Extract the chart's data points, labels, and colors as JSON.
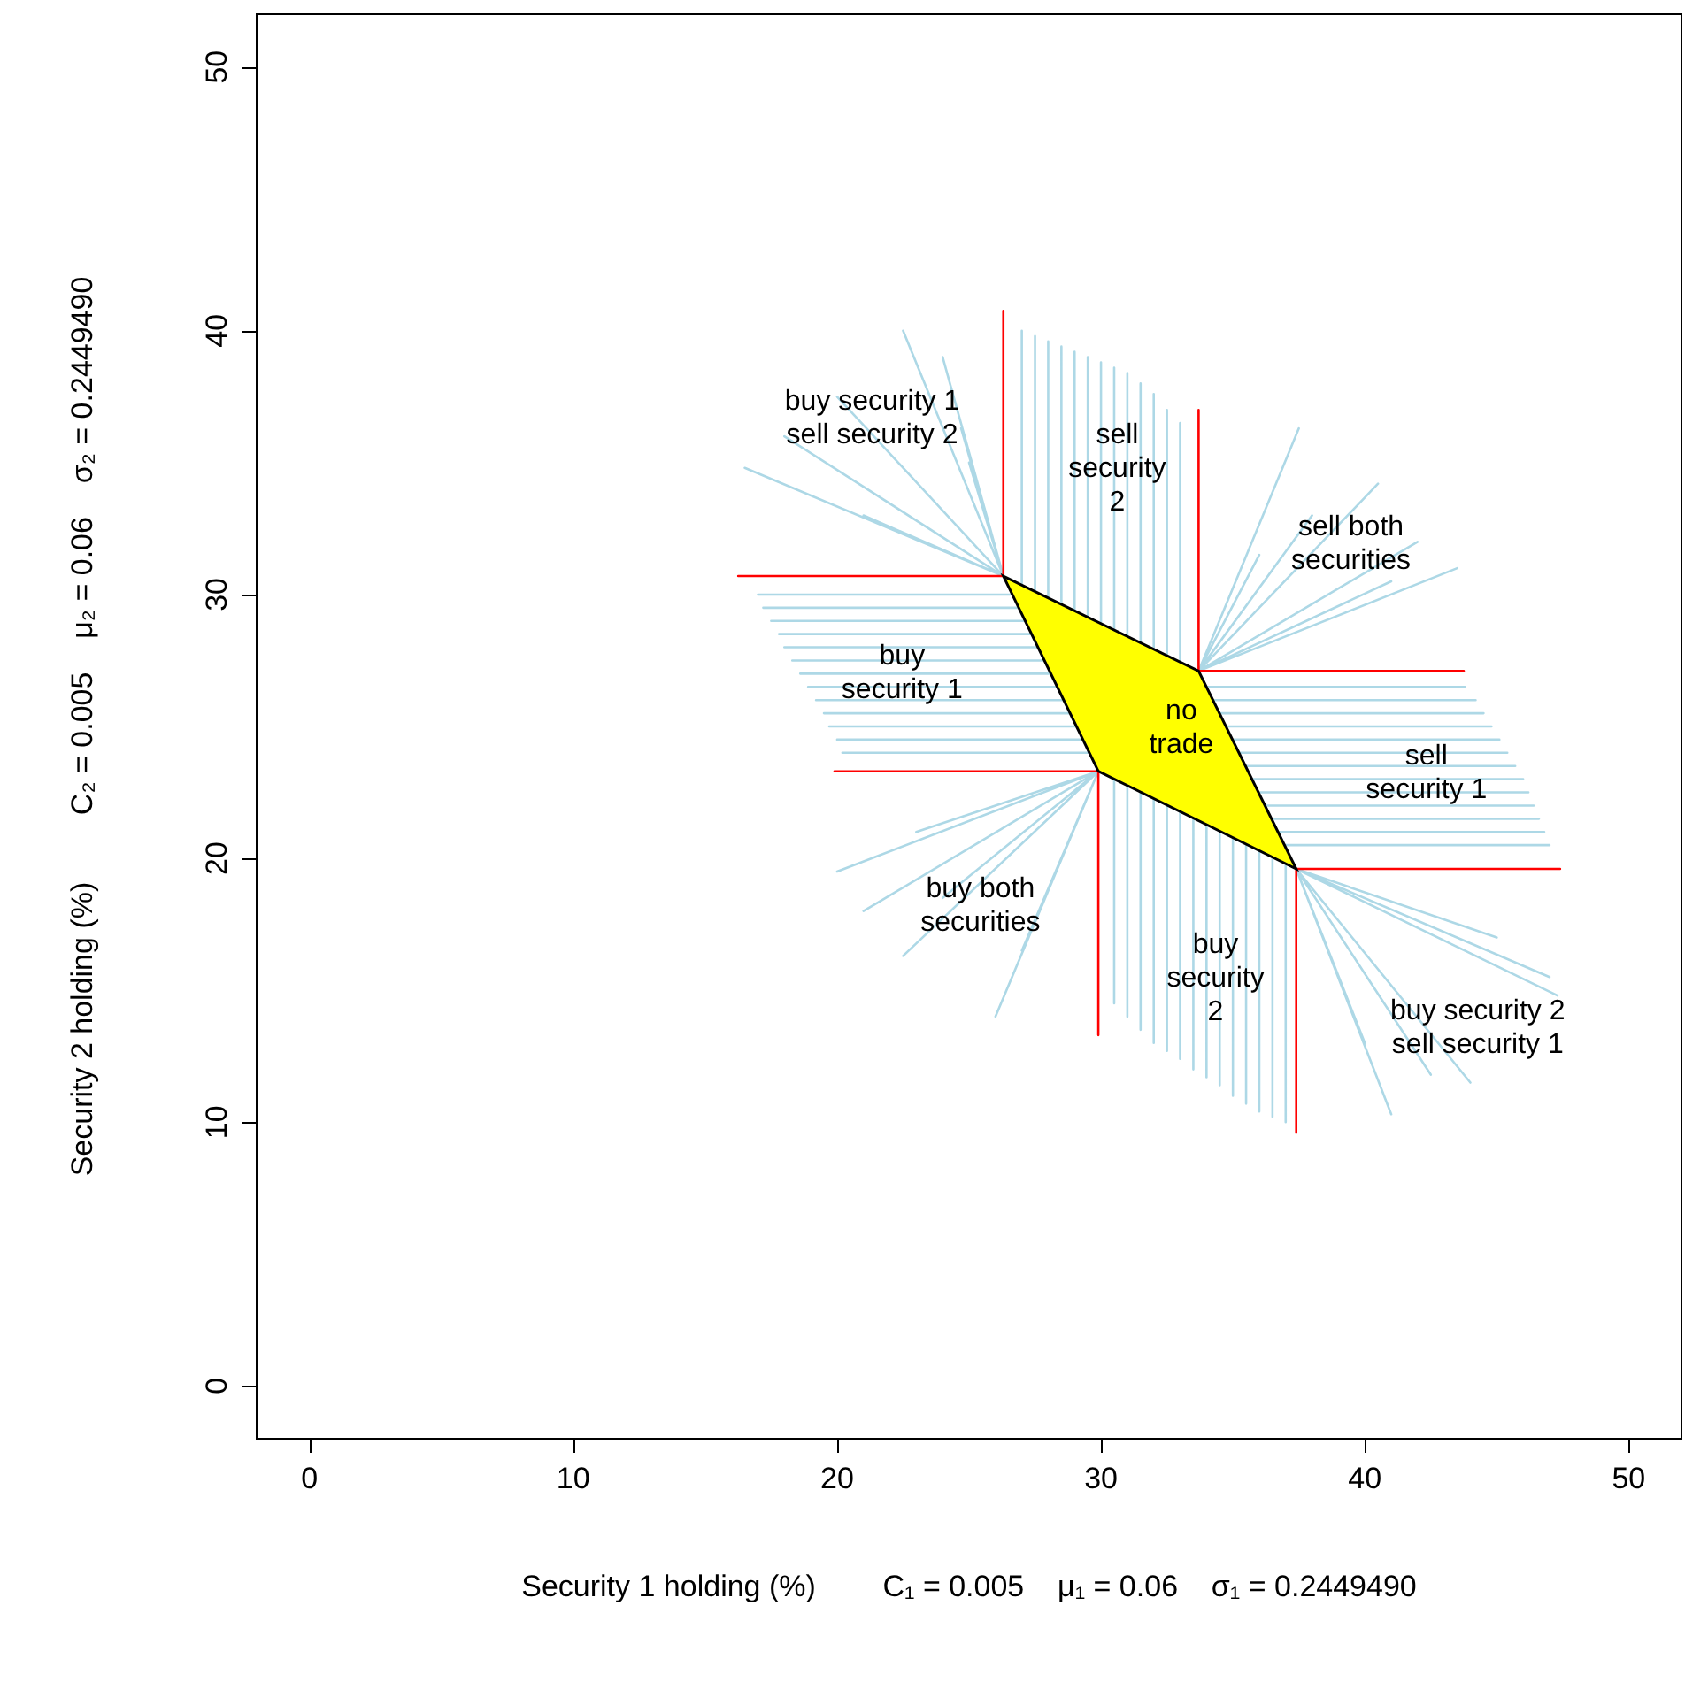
{
  "chart_data": {
    "type": "line",
    "xlabel": "Security 1 holding (%)        C₁ = 0.005    μ₁ = 0.06    σ₁ = 0.2449490",
    "ylabel": "Security 2 holding (%)        C₂ = 0.005    μ₂ = 0.06    σ₂ = 0.2449490",
    "xlim": [
      -2,
      52
    ],
    "xticks": [
      0,
      10,
      20,
      30,
      40,
      50
    ],
    "ylim": [
      -2,
      52
    ],
    "yticks": [
      0,
      10,
      20,
      30,
      40,
      50
    ],
    "grid": false,
    "marker": "none",
    "line_style": "solid",
    "series": [
      {
        "color": "#add8e6",
        "x": [
          27,
          27,
          null,
          27.5,
          27.5,
          null,
          28,
          28,
          null,
          28.5,
          28.5,
          null,
          29,
          29,
          null,
          29.5,
          29.5,
          null,
          30,
          30,
          null,
          30.5,
          30.5,
          null,
          31,
          31,
          null,
          31.5,
          31.5,
          null,
          32,
          32,
          null,
          32.5,
          32.5,
          null,
          33,
          33
        ],
        "values": [
          40,
          30.4,
          null,
          39.8,
          30.1,
          null,
          39.6,
          29.9,
          null,
          39.4,
          29.6,
          null,
          39.2,
          29.4,
          null,
          39,
          29.1,
          null,
          38.8,
          28.9,
          null,
          38.6,
          28.7,
          null,
          38.4,
          28.4,
          null,
          38,
          28.2,
          null,
          37.6,
          27.9,
          null,
          37,
          27.7,
          null,
          36.5,
          27.4
        ]
      },
      {
        "color": "#add8e6",
        "x": [
          30.5,
          30.5,
          null,
          31,
          31,
          null,
          31.5,
          31.5,
          null,
          32,
          32,
          null,
          32.5,
          32.5,
          null,
          33,
          33,
          null,
          33.5,
          33.5,
          null,
          34,
          34,
          null,
          34.5,
          34.5,
          null,
          35,
          35,
          null,
          35.5,
          35.5,
          null,
          36,
          36,
          null,
          36.5,
          36.5,
          null,
          37,
          37
        ],
        "values": [
          14.5,
          23,
          null,
          14,
          22.8,
          null,
          13.5,
          22.5,
          null,
          13,
          22.3,
          null,
          12.7,
          22,
          null,
          12.4,
          21.8,
          null,
          12,
          21.5,
          null,
          11.7,
          21.3,
          null,
          11.4,
          21,
          null,
          11,
          20.8,
          null,
          10.7,
          20.5,
          null,
          10.4,
          20.3,
          null,
          10.2,
          20.1,
          null,
          10,
          19.8
        ]
      },
      {
        "color": "#add8e6",
        "x": [
          17,
          26.6,
          null,
          17.2,
          26.9,
          null,
          17.5,
          27.1,
          null,
          17.8,
          27.4,
          null,
          18,
          27.6,
          null,
          18.3,
          27.9,
          null,
          18.6,
          28.1,
          null,
          18.9,
          28.3,
          null,
          19.2,
          28.6,
          null,
          19.5,
          28.8,
          null,
          19.7,
          29.1,
          null,
          20,
          29.3,
          null,
          20.2,
          29.6
        ],
        "values": [
          30,
          30,
          null,
          29.5,
          29.5,
          null,
          29,
          29,
          null,
          28.5,
          28.5,
          null,
          28,
          28,
          null,
          27.5,
          27.5,
          null,
          27,
          27,
          null,
          26.5,
          26.5,
          null,
          26,
          26,
          null,
          25.5,
          25.5,
          null,
          25,
          25,
          null,
          24.5,
          24.5,
          null,
          24,
          24
        ]
      },
      {
        "color": "#add8e6",
        "x": [
          43.8,
          34,
          null,
          44.2,
          34.2,
          null,
          44.5,
          34.5,
          null,
          44.8,
          34.7,
          null,
          45.1,
          35,
          null,
          45.4,
          35.2,
          null,
          45.7,
          35.5,
          null,
          46,
          35.7,
          null,
          46.2,
          35.9,
          null,
          46.4,
          36.2,
          null,
          46.6,
          36.5,
          null,
          46.8,
          36.7,
          null,
          47,
          36.9
        ],
        "values": [
          26.5,
          26.5,
          null,
          26,
          26,
          null,
          25.5,
          25.5,
          null,
          25,
          25,
          null,
          24.5,
          24.5,
          null,
          24,
          24,
          null,
          23.5,
          23.5,
          null,
          23,
          23,
          null,
          22.5,
          22.5,
          null,
          22,
          22,
          null,
          21.5,
          21.5,
          null,
          21,
          21,
          null,
          20.5,
          20.5
        ]
      },
      {
        "color": "#add8e6",
        "x": [
          22.5,
          26.3,
          null,
          20,
          26.3,
          null,
          18,
          26.3,
          null,
          16.5,
          26.3,
          null,
          24,
          26.3,
          null,
          25,
          26.3,
          null,
          21,
          26.3,
          null,
          24.7,
          26.3
        ],
        "values": [
          40,
          30.7,
          null,
          37.5,
          30.7,
          null,
          36,
          30.7,
          null,
          34.8,
          30.7,
          null,
          39,
          30.7,
          null,
          35,
          30.7,
          null,
          33,
          30.7,
          null,
          36.3,
          30.7
        ]
      },
      {
        "color": "#add8e6",
        "x": [
          37.5,
          33.7,
          null,
          40.5,
          33.7,
          null,
          42,
          33.7,
          null,
          43.5,
          33.7,
          null,
          38,
          33.7,
          null,
          41,
          33.7,
          null,
          36,
          33.7
        ],
        "values": [
          36.3,
          27.1,
          null,
          34.2,
          27.1,
          null,
          32,
          27.1,
          null,
          31,
          27.1,
          null,
          33,
          27.1,
          null,
          30.5,
          27.1,
          null,
          31.5,
          27.1
        ]
      },
      {
        "color": "#add8e6",
        "x": [
          20,
          29.9,
          null,
          22.5,
          29.9,
          null,
          26,
          29.9,
          null,
          21,
          29.9,
          null,
          24,
          29.9,
          null,
          27,
          29.9,
          null,
          23,
          29.9
        ],
        "values": [
          19.5,
          23.3,
          null,
          16.3,
          23.3,
          null,
          14,
          23.3,
          null,
          18,
          23.3,
          null,
          18.5,
          23.3,
          null,
          16.5,
          23.3,
          null,
          21,
          23.3
        ]
      },
      {
        "color": "#add8e6",
        "x": [
          41,
          37.4,
          null,
          44,
          37.4,
          null,
          47.3,
          37.4,
          null,
          47,
          37.4,
          null,
          42.5,
          37.4,
          null,
          40,
          37.4,
          null,
          45,
          37.4
        ],
        "values": [
          10.3,
          19.6,
          null,
          11.5,
          19.6,
          null,
          14.8,
          19.6,
          null,
          15.5,
          19.6,
          null,
          11.8,
          19.6,
          null,
          13,
          19.6,
          null,
          17,
          19.6
        ]
      },
      {
        "type": "area",
        "color": "#ffff00",
        "x": [
          26.3,
          33.7,
          37.4,
          29.9
        ],
        "values": [
          30.7,
          27.1,
          19.6,
          23.3
        ]
      },
      {
        "color": "#ff0000",
        "x": [
          26.3,
          26.3,
          null,
          26.3,
          16.25,
          null,
          33.7,
          33.7,
          null,
          33.7,
          43.75,
          null,
          37.4,
          47.4,
          null,
          37.4,
          37.4,
          null,
          29.9,
          19.9,
          null,
          29.9,
          29.9
        ],
        "values": [
          30.7,
          40.75,
          null,
          30.7,
          30.7,
          null,
          27.1,
          37,
          null,
          27.1,
          27.1,
          null,
          19.6,
          19.6,
          null,
          19.6,
          9.6,
          null,
          23.3,
          23.3,
          null,
          23.3,
          13.3
        ]
      }
    ],
    "annotations": [
      "buy security 1\nsell security 2",
      "sell\nsecurity\n2",
      "sell both\nsecurities",
      "buy\nsecurity 1",
      "no\ntrade",
      "sell\nsecurity 1",
      "buy both\nsecurities",
      "buy\nsecurity\n2",
      "buy security 2\nsell security 1"
    ]
  }
}
